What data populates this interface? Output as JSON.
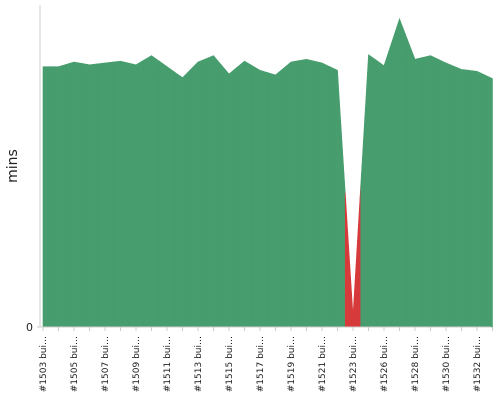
{
  "chart_data": {
    "type": "area",
    "y_label": "mins",
    "categories": [
      "#1503 bui…",
      null,
      "#1505 bui…",
      null,
      "#1507 bui…",
      null,
      "#1509 bui…",
      null,
      "#1511 bui…",
      null,
      "#1513 bui…",
      null,
      "#1515 bui…",
      null,
      "#1517 bui…",
      null,
      "#1519 bui…",
      null,
      "#1521 bui…",
      null,
      "#1523 bui…",
      null,
      "#1526 bui…",
      null,
      "#1528 bui…",
      null,
      "#1530 bui…",
      null,
      "#1532 bui…",
      null
    ],
    "values": [
      28.3,
      28.3,
      28.8,
      28.5,
      28.7,
      28.9,
      28.5,
      29.5,
      28.3,
      27.1,
      28.8,
      29.5,
      27.5,
      28.9,
      27.9,
      27.4,
      28.8,
      29.1,
      28.7,
      27.9,
      1.3,
      29.6,
      28.4,
      33.5,
      29.1,
      29.5,
      28.7,
      28.0,
      27.8,
      27.0
    ],
    "colors": [
      "#479d6d",
      "#479d6d",
      "#479d6d",
      "#479d6d",
      "#479d6d",
      "#479d6d",
      "#479d6d",
      "#479d6d",
      "#479d6d",
      "#479d6d",
      "#479d6d",
      "#479d6d",
      "#479d6d",
      "#479d6d",
      "#479d6d",
      "#479d6d",
      "#479d6d",
      "#479d6d",
      "#479d6d",
      "#479d6d",
      "#d63a3a",
      "#479d6d",
      "#479d6d",
      "#479d6d",
      "#479d6d",
      "#479d6d",
      "#479d6d",
      "#479d6d",
      "#479d6d",
      "#479d6d"
    ],
    "ylim": [
      0,
      35
    ],
    "yticks": [
      0
    ]
  }
}
